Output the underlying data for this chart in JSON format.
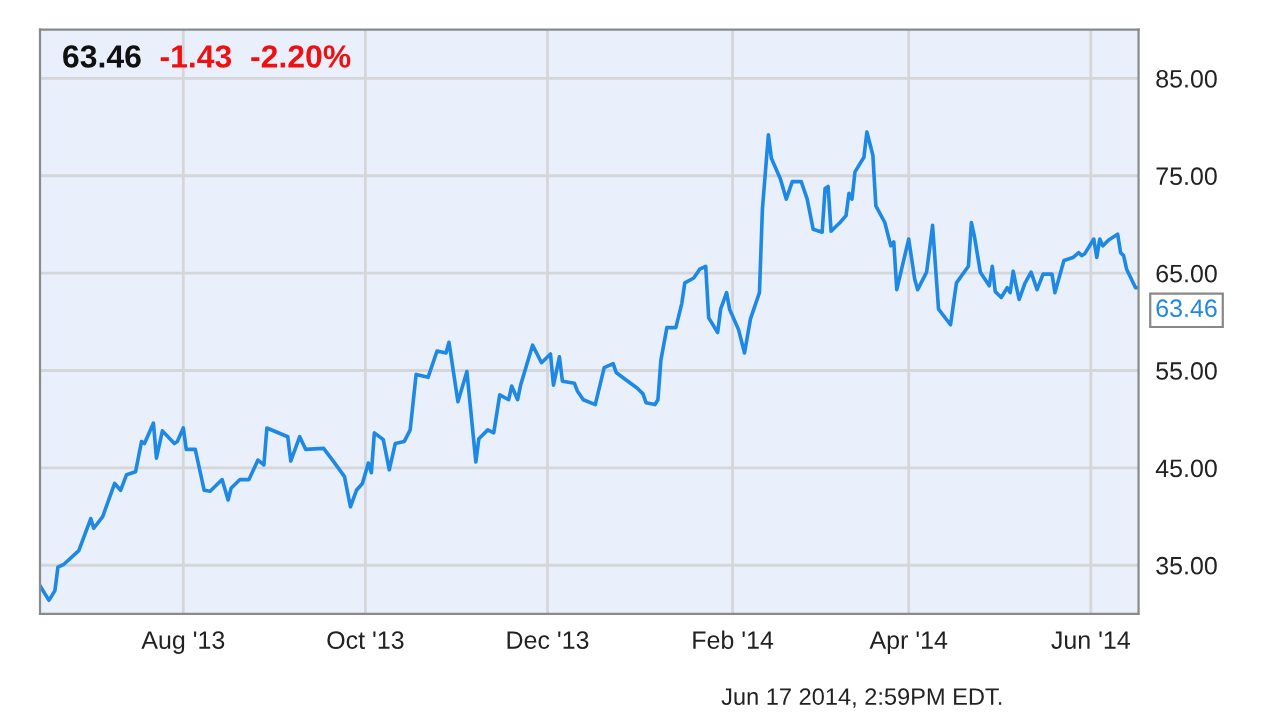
{
  "chart_data": {
    "type": "line",
    "title": "63.46",
    "subtitle": "-1.43  -2.20%",
    "annotations": [
      {
        "text": "63.46",
        "x": "2014-06-17",
        "y": 63.46
      },
      "Jun 17 2014, 2:59PM EDT."
    ],
    "x": [
      "2013-06-14",
      "2013-06-17",
      "2013-06-19",
      "2013-06-20",
      "2013-06-22",
      "2013-06-27",
      "2013-07-01",
      "2013-07-02",
      "2013-07-05",
      "2013-07-09",
      "2013-07-11",
      "2013-07-13",
      "2013-07-16",
      "2013-07-18",
      "2013-07-19",
      "2013-07-22",
      "2013-07-23",
      "2013-07-25",
      "2013-07-29",
      "2013-07-30",
      "2013-08-01",
      "2013-08-02",
      "2013-08-05",
      "2013-08-08",
      "2013-08-10",
      "2013-08-14",
      "2013-08-16",
      "2013-08-17",
      "2013-08-20",
      "2013-08-23",
      "2013-08-26",
      "2013-08-28",
      "2013-08-29",
      "2013-09-05",
      "2013-09-06",
      "2013-09-09",
      "2013-09-11",
      "2013-09-17",
      "2013-09-20",
      "2013-09-24",
      "2013-09-26",
      "2013-09-28",
      "2013-09-30",
      "2013-10-02",
      "2013-10-03",
      "2013-10-04",
      "2013-10-07",
      "2013-10-09",
      "2013-10-11",
      "2013-10-14",
      "2013-10-16",
      "2013-10-18",
      "2013-10-22",
      "2013-10-25",
      "2013-10-28",
      "2013-10-29",
      "2013-11-01",
      "2013-11-04",
      "2013-11-07",
      "2013-11-08",
      "2013-11-11",
      "2013-11-13",
      "2013-11-15",
      "2013-11-18",
      "2013-11-19",
      "2013-11-21",
      "2013-11-22",
      "2013-11-26",
      "2013-11-29",
      "2013-12-02",
      "2013-12-03",
      "2013-12-05",
      "2013-12-06",
      "2013-12-10",
      "2013-12-11",
      "2013-12-13",
      "2013-12-17",
      "2013-12-20",
      "2013-12-23",
      "2013-12-24",
      "2013-12-27",
      "2013-12-31",
      "2014-01-02",
      "2014-01-03",
      "2014-01-06",
      "2014-01-07",
      "2014-01-08",
      "2014-01-10",
      "2014-01-13",
      "2014-01-15",
      "2014-01-16",
      "2014-01-19",
      "2014-01-21",
      "2014-01-23",
      "2014-01-24",
      "2014-01-27",
      "2014-01-28",
      "2014-01-30",
      "2014-01-31",
      "2014-02-03",
      "2014-02-05",
      "2014-02-07",
      "2014-02-10",
      "2014-02-11",
      "2014-02-13",
      "2014-02-14",
      "2014-02-17",
      "2014-02-19",
      "2014-02-21",
      "2014-02-24",
      "2014-02-26",
      "2014-02-28",
      "2014-03-03",
      "2014-03-04",
      "2014-03-05",
      "2014-03-06",
      "2014-03-09",
      "2014-03-11",
      "2014-03-12",
      "2014-03-13",
      "2014-03-14",
      "2014-03-17",
      "2014-03-18",
      "2014-03-20",
      "2014-03-21",
      "2014-03-24",
      "2014-03-26",
      "2014-03-27",
      "2014-03-28",
      "2014-04-01",
      "2014-04-03",
      "2014-04-04",
      "2014-04-07",
      "2014-04-09",
      "2014-04-11",
      "2014-04-15",
      "2014-04-17",
      "2014-04-21",
      "2014-04-22",
      "2014-04-23",
      "2014-04-25",
      "2014-04-28",
      "2014-04-29",
      "2014-04-30",
      "2014-05-02",
      "2014-05-04",
      "2014-05-05",
      "2014-05-06",
      "2014-05-07",
      "2014-05-08",
      "2014-05-10",
      "2014-05-12",
      "2014-05-14",
      "2014-05-16",
      "2014-05-19",
      "2014-05-20",
      "2014-05-23",
      "2014-05-26",
      "2014-05-28",
      "2014-05-29",
      "2014-05-30",
      "2014-06-02",
      "2014-06-03",
      "2014-06-04",
      "2014-06-05",
      "2014-06-07",
      "2014-06-10",
      "2014-06-11",
      "2014-06-12",
      "2014-06-13",
      "2014-06-16",
      "2014-06-17"
    ],
    "series": [
      {
        "color": "#1e88e5",
        "values": [
          32.9,
          31.4,
          32.4,
          34.8,
          35.1,
          36.5,
          39.8,
          38.8,
          40.0,
          43.4,
          42.7,
          44.3,
          44.6,
          47.7,
          47.5,
          49.6,
          46.0,
          48.8,
          47.5,
          47.7,
          49.1,
          46.9,
          46.9,
          42.7,
          42.6,
          43.8,
          41.7,
          42.9,
          43.8,
          43.8,
          45.8,
          45.3,
          49.1,
          48.2,
          45.7,
          48.2,
          46.9,
          47.0,
          45.8,
          44.1,
          41.0,
          42.7,
          43.4,
          45.5,
          44.5,
          48.6,
          47.9,
          44.8,
          47.5,
          47.7,
          48.9,
          54.6,
          54.3,
          57.0,
          56.8,
          57.9,
          51.8,
          54.9,
          45.6,
          48.0,
          48.9,
          48.6,
          52.5,
          52.0,
          53.4,
          52.0,
          53.5,
          57.6,
          55.8,
          56.7,
          53.5,
          56.4,
          53.9,
          53.7,
          52.9,
          52.0,
          51.5,
          55.3,
          55.7,
          54.8,
          54.1,
          53.2,
          52.6,
          51.7,
          51.5,
          52.0,
          56.1,
          59.4,
          59.4,
          61.9,
          64.0,
          64.5,
          65.4,
          65.7,
          60.4,
          58.9,
          61.3,
          63.0,
          61.3,
          59.2,
          56.8,
          60.3,
          63.0,
          71.6,
          79.2,
          76.8,
          74.7,
          72.6,
          74.4,
          74.4,
          72.6,
          69.5,
          69.2,
          73.7,
          73.9,
          69.3,
          70.2,
          70.9,
          73.2,
          72.6,
          75.4,
          76.9,
          79.5,
          77.1,
          71.9,
          70.2,
          67.8,
          68.2,
          63.3,
          68.5,
          64.4,
          63.3,
          65.1,
          69.9,
          61.3,
          59.7,
          64.0,
          65.7,
          70.2,
          68.8,
          65.1,
          63.7,
          65.7,
          63.1,
          62.5,
          63.5,
          63.0,
          65.2,
          63.7,
          62.3,
          64.0,
          65.1,
          63.3,
          64.9,
          64.9,
          63.0,
          66.3,
          66.6,
          67.1,
          66.8,
          67.0,
          68.5,
          66.6,
          68.5,
          67.8,
          68.4,
          69.0,
          67.1,
          66.8,
          65.4,
          63.5,
          63.5
        ]
      }
    ],
    "xlim": [
      "2013-06-14",
      "2014-06-17"
    ],
    "xticks": [
      {
        "value": "2013-08-01",
        "label": "Aug '13"
      },
      {
        "value": "2013-10-01",
        "label": "Oct '13"
      },
      {
        "value": "2013-12-01",
        "label": "Dec '13"
      },
      {
        "value": "2014-02-01",
        "label": "Feb '14"
      },
      {
        "value": "2014-04-01",
        "label": "Apr '14"
      },
      {
        "value": "2014-06-01",
        "label": "Jun '14"
      }
    ],
    "ylim": [
      30,
      90
    ],
    "yticks": [
      {
        "value": 35,
        "label": "35.00"
      },
      {
        "value": 45,
        "label": "45.00"
      },
      {
        "value": 55,
        "label": "55.00"
      },
      {
        "value": 65,
        "label": "65.00"
      },
      {
        "value": 75,
        "label": "75.00"
      },
      {
        "value": 85,
        "label": "85.00"
      }
    ],
    "grid": true,
    "marker": "none",
    "line_style": "solid"
  }
}
